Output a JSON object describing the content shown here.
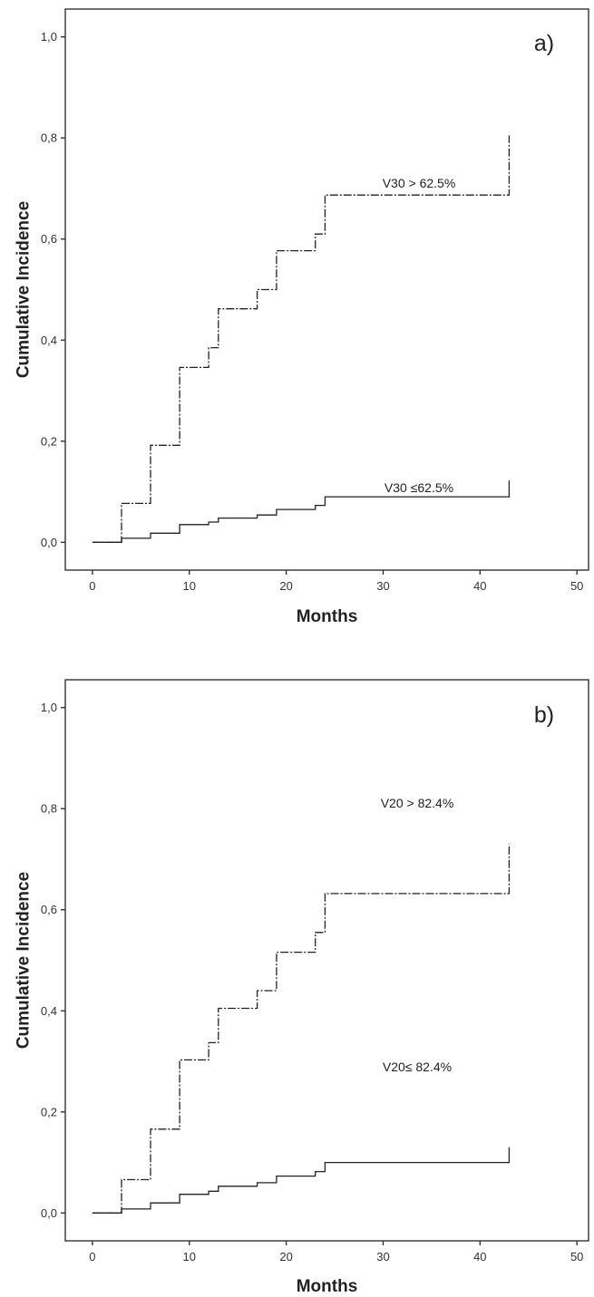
{
  "chart_data": [
    {
      "type": "line",
      "step": true,
      "panel_label": "a)",
      "xlabel": "Months",
      "ylabel": "Cumulative Incidence",
      "xlim": [
        -2.8,
        51.2
      ],
      "ylim": [
        -0.055,
        1.055
      ],
      "x_ticks": [
        0,
        10,
        20,
        30,
        40,
        50
      ],
      "x_tick_labels": [
        "0",
        "10",
        "20",
        "30",
        "40",
        "50"
      ],
      "y_ticks": [
        0,
        0.2,
        0.4,
        0.6,
        0.8,
        1.0
      ],
      "y_tick_labels": [
        "0,0",
        "0,2",
        "0,4",
        "0,6",
        "0,8",
        "1,0"
      ],
      "grid": false,
      "series": [
        {
          "name": "V30 > 62.5%",
          "line_style": "dashed",
          "x": [
            0,
            3,
            6,
            9,
            12,
            13,
            17,
            19,
            23,
            24,
            43,
            43
          ],
          "y": [
            0,
            0.077,
            0.192,
            0.346,
            0.385,
            0.462,
            0.5,
            0.577,
            0.61,
            0.687,
            0.687,
            0.805
          ]
        },
        {
          "name": "V30 ≤62.5%",
          "line_style": "solid",
          "x": [
            0,
            3,
            6,
            9,
            12,
            13,
            17,
            19,
            23,
            24,
            43,
            43
          ],
          "y": [
            0,
            0.008,
            0.018,
            0.035,
            0.04,
            0.048,
            0.054,
            0.065,
            0.073,
            0.09,
            0.09,
            0.122
          ]
        }
      ]
    },
    {
      "type": "line",
      "step": true,
      "panel_label": "b)",
      "xlabel": "Months",
      "ylabel": "Cumulative Incidence",
      "xlim": [
        -2.8,
        51.2
      ],
      "ylim": [
        -0.055,
        1.055
      ],
      "x_ticks": [
        0,
        10,
        20,
        30,
        40,
        50
      ],
      "x_tick_labels": [
        "0",
        "10",
        "20",
        "30",
        "40",
        "50"
      ],
      "y_ticks": [
        0,
        0.2,
        0.4,
        0.6,
        0.8,
        1.0
      ],
      "y_tick_labels": [
        "0,0",
        "0,2",
        "0,4",
        "0,6",
        "0,8",
        "1,0"
      ],
      "grid": false,
      "series": [
        {
          "name": "V20 > 82.4%",
          "line_style": "dashed",
          "x": [
            0,
            3,
            6,
            9,
            12,
            13,
            17,
            19,
            23,
            24,
            43,
            43
          ],
          "y": [
            0,
            0.066,
            0.166,
            0.303,
            0.337,
            0.405,
            0.44,
            0.516,
            0.555,
            0.632,
            0.632,
            0.73
          ]
        },
        {
          "name": "V20≤ 82.4%",
          "line_style": "solid",
          "x": [
            0,
            3,
            6,
            9,
            12,
            13,
            17,
            19,
            23,
            24,
            43,
            43
          ],
          "y": [
            0,
            0.008,
            0.02,
            0.037,
            0.043,
            0.053,
            0.06,
            0.073,
            0.082,
            0.1,
            0.1,
            0.13
          ]
        }
      ]
    }
  ]
}
